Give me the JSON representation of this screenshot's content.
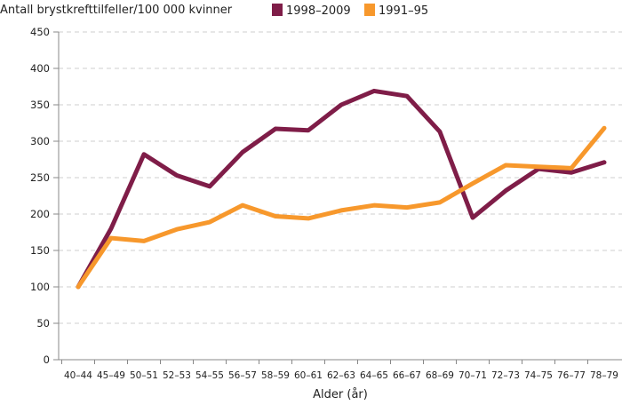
{
  "chart_data": {
    "type": "line",
    "title": "",
    "ylabel": "Antall brystkrefttilfeller/100 000 kvinner",
    "xlabel": "Alder (år)",
    "ylim": [
      0,
      450
    ],
    "yticks": [
      0,
      50,
      100,
      150,
      200,
      250,
      300,
      350,
      400,
      450
    ],
    "grid": true,
    "legend": "top",
    "categories": [
      "40–44",
      "45–49",
      "50–51",
      "52–53",
      "54–55",
      "56–57",
      "58–59",
      "60–61",
      "62–63",
      "64–65",
      "66–67",
      "68–69",
      "70–71",
      "72–73",
      "74–75",
      "76–77",
      "78–79"
    ],
    "series": [
      {
        "name": "1998–2009",
        "color": "#7f1d48",
        "values": [
          100,
          180,
          282,
          253,
          238,
          285,
          317,
          315,
          350,
          369,
          362,
          313,
          195,
          232,
          262,
          257,
          271
        ]
      },
      {
        "name": "1991–95",
        "color": "#f7982c",
        "values": [
          100,
          167,
          163,
          179,
          189,
          212,
          197,
          194,
          205,
          212,
          209,
          216,
          242,
          267,
          265,
          263,
          318
        ]
      }
    ]
  }
}
